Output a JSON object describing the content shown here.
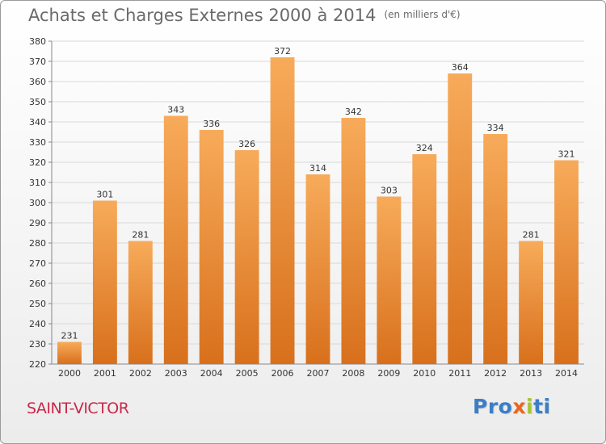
{
  "title": "Achats et Charges Externes 2000 à 2014",
  "unit_label": "(en milliers d'€)",
  "location": "SAINT-VICTOR",
  "logo_text": "Proxiti",
  "logo_colors": [
    "#3a7fc6",
    "#3a7fc6",
    "#3a7fc6",
    "#e8671f",
    "#a5c63b",
    "#3a7fc6",
    "#3a7fc6"
  ],
  "colors": {
    "bar_top": "#f7ab5a",
    "bar_bottom": "#d8701c",
    "grid": "#d9d9d9",
    "axis_text": "#333333",
    "title": "#6a6a6a",
    "location": "#c8284a"
  },
  "chart_data": {
    "type": "bar",
    "categories": [
      "2000",
      "2001",
      "2002",
      "2003",
      "2004",
      "2005",
      "2006",
      "2007",
      "2008",
      "2009",
      "2010",
      "2011",
      "2012",
      "2013",
      "2014"
    ],
    "values": [
      231,
      301,
      281,
      343,
      336,
      326,
      372,
      314,
      342,
      303,
      324,
      364,
      334,
      281,
      321
    ],
    "data_labels": [
      "231",
      "301",
      "281",
      "343",
      "336",
      "326",
      "372",
      "314",
      "342",
      "303",
      "324",
      "364",
      "334",
      "281",
      "321"
    ],
    "ylim": [
      220,
      380
    ],
    "yticks": [
      "220",
      "230",
      "240",
      "250",
      "260",
      "270",
      "280",
      "290",
      "300",
      "310",
      "320",
      "330",
      "340",
      "350",
      "360",
      "370",
      "380"
    ],
    "grid": true,
    "xlabel": "",
    "ylabel": ""
  }
}
